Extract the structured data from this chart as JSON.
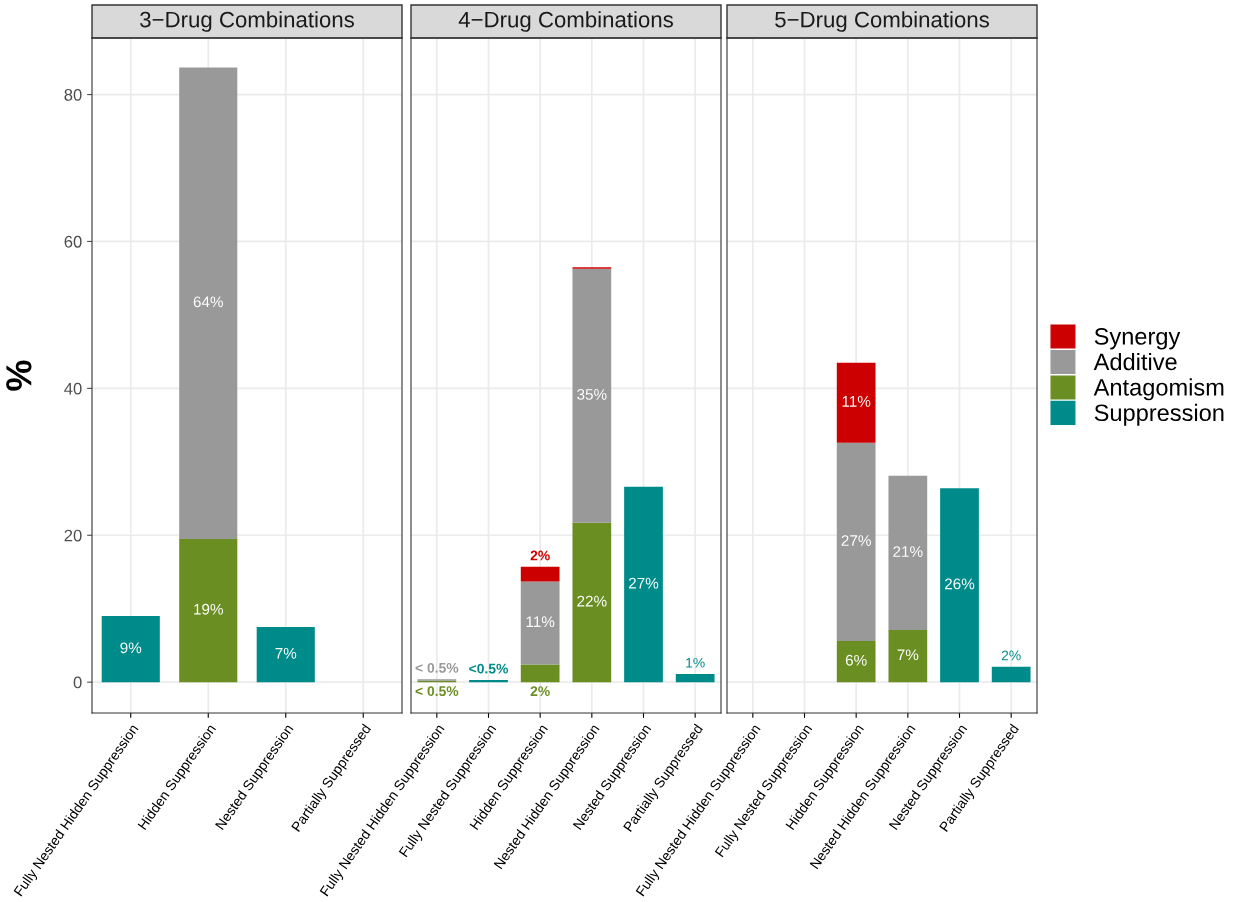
{
  "chart_data": [
    {
      "type": "bar",
      "stacked": true,
      "title": "3−Drug Combinations",
      "ylabel": "%",
      "categories": [
        "Fully Nested Hidden Suppression",
        "Hidden Suppression",
        "Nested Suppression",
        "Partially Suppressed"
      ],
      "ylim": [
        -4.2,
        87.7
      ],
      "yticks": [
        0,
        20,
        40,
        60,
        80
      ],
      "grid": true,
      "series": [
        {
          "color": "#008b8b",
          "values": [
            9.0,
            null,
            7.5,
            null
          ],
          "value_labels": [
            "9%",
            null,
            "7%",
            null
          ]
        },
        {
          "color": "#6b8e23",
          "values": [
            null,
            19.5,
            null,
            null
          ],
          "value_labels": [
            null,
            "19%",
            null,
            null
          ]
        },
        {
          "color": "#999999",
          "values": [
            null,
            64.2,
            null,
            null
          ],
          "value_labels": [
            null,
            "64%",
            null,
            null
          ]
        },
        {
          "color": "#cc0000",
          "values": [
            null,
            null,
            null,
            null
          ],
          "value_labels": [
            null,
            null,
            null,
            null
          ]
        }
      ]
    },
    {
      "type": "bar",
      "stacked": true,
      "title": "4−Drug Combinations",
      "categories": [
        "Fully Nested Hidden Suppression",
        "Fully Nested Suppression",
        "Hidden Suppression",
        "Nested Hidden Suppression",
        "Nested Suppression",
        "Partially Suppressed"
      ],
      "ylim": [
        -4.2,
        87.7
      ],
      "yticks": [
        0,
        20,
        40,
        60,
        80
      ],
      "tick_labels": "x",
      "grid": true,
      "series": [
        {
          "color": "#008b8b",
          "values": [
            null,
            0.3,
            null,
            null,
            26.6,
            1.1
          ],
          "value_labels": [
            null,
            "<0.5%",
            null,
            null,
            "27%",
            "1%"
          ]
        },
        {
          "color": "#6b8e23",
          "values": [
            0.2,
            null,
            2.4,
            21.7,
            null,
            null
          ],
          "value_labels": [
            "< 0.5%",
            null,
            "2%",
            "22%",
            null,
            null
          ]
        },
        {
          "color": "#999999",
          "values": [
            0.2,
            null,
            11.3,
            34.6,
            null,
            null
          ],
          "value_labels": [
            "< 0.5%",
            null,
            "11%",
            "35%",
            null,
            null
          ]
        },
        {
          "color": "#cc0000",
          "values": [
            null,
            null,
            2.0,
            0.2,
            null,
            null
          ],
          "value_labels": [
            null,
            null,
            "2%",
            null,
            null,
            null
          ]
        }
      ]
    },
    {
      "type": "bar",
      "stacked": true,
      "title": "5−Drug Combinations",
      "categories": [
        "Fully Nested Hidden Suppression",
        "Fully Nested Suppression",
        "Hidden Suppression",
        "Nested Hidden Suppression",
        "Nested Suppression",
        "Partially Suppressed"
      ],
      "ylim": [
        -4.2,
        87.7
      ],
      "yticks": [
        0,
        20,
        40,
        60,
        80
      ],
      "tick_labels": "x",
      "grid": true,
      "legend": "right",
      "series": [
        {
          "name": "Suppression",
          "color": "#008b8b",
          "values": [
            null,
            null,
            null,
            null,
            26.4,
            2.1
          ],
          "value_labels": [
            null,
            null,
            null,
            null,
            "26%",
            "2%"
          ]
        },
        {
          "name": "Antagomism",
          "color": "#6b8e23",
          "values": [
            null,
            null,
            5.6,
            7.1,
            null,
            null
          ],
          "value_labels": [
            null,
            null,
            "6%",
            "7%",
            null,
            null
          ]
        },
        {
          "name": "Additive",
          "color": "#999999",
          "values": [
            null,
            null,
            27.0,
            21.0,
            null,
            null
          ],
          "value_labels": [
            null,
            null,
            "27%",
            "21%",
            null,
            null
          ]
        },
        {
          "name": "Synergy",
          "color": "#cc0000",
          "values": [
            null,
            null,
            10.9,
            null,
            null,
            null
          ],
          "value_labels": [
            null,
            null,
            "11%",
            null,
            null,
            null
          ]
        }
      ]
    }
  ]
}
